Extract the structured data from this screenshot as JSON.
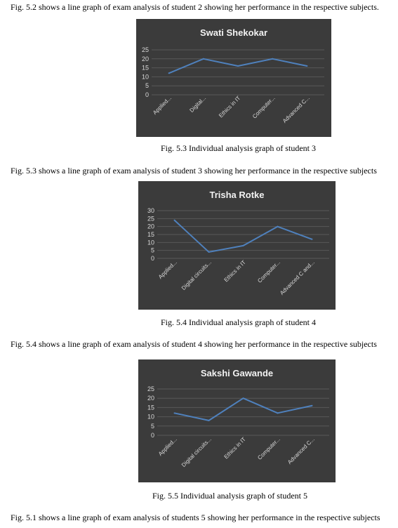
{
  "paragraphs": [
    "Fig. 5.2 shows a line graph of exam analysis of student 2 showing her performance in the respective subjects.",
    "Fig. 5.3 shows a line graph of exam analysis of student 3 showing her performance in the respective subjects",
    "Fig. 5.4 shows a line graph of exam analysis of student 4 showing her performance in the respective subjects",
    "Fig. 5.1 shows a line graph of exam analysis of students 5 showing her performance in the respective subjects"
  ],
  "captions": [
    "Fig. 5.3 Individual analysis graph of student 3",
    "Fig. 5.4 Individual analysis graph of student 4",
    "Fig. 5.5 Individual analysis graph of student 5"
  ],
  "colors": {
    "chart_background": "#3b3b3b",
    "line": "#4f81bd",
    "grid": "#595959",
    "text": "#d9d9d9"
  },
  "chart_data": [
    {
      "type": "line",
      "title": "Swati Shekokar",
      "categories": [
        "Applied...",
        "Digital...",
        "Ethics in IT",
        "Computer...",
        "Advanced C..."
      ],
      "series": [
        {
          "values": [
            12,
            20,
            16,
            20,
            16
          ]
        }
      ],
      "ylim": [
        0,
        25
      ],
      "yticks": [
        0,
        5,
        10,
        15,
        20,
        25
      ],
      "grid": true,
      "legend": "none"
    },
    {
      "type": "line",
      "title": "Trisha Rotke",
      "categories": [
        "Applied...",
        "Digital circuits...",
        "Ethics in IT",
        "Computer...",
        "Advanced C and..."
      ],
      "series": [
        {
          "values": [
            24,
            4,
            8,
            20,
            12
          ]
        }
      ],
      "ylim": [
        0,
        30
      ],
      "yticks": [
        0,
        5,
        10,
        15,
        20,
        25,
        30
      ],
      "grid": true,
      "legend": "none"
    },
    {
      "type": "line",
      "title": "Sakshi Gawande",
      "categories": [
        "Applied...",
        "Digital circuits...",
        "Ethics in IT",
        "Computer...",
        "Advanced C..."
      ],
      "series": [
        {
          "values": [
            12,
            8,
            20,
            12,
            16
          ]
        }
      ],
      "ylim": [
        0,
        25
      ],
      "yticks": [
        0,
        5,
        10,
        15,
        20,
        25
      ],
      "grid": true,
      "legend": "none"
    }
  ]
}
